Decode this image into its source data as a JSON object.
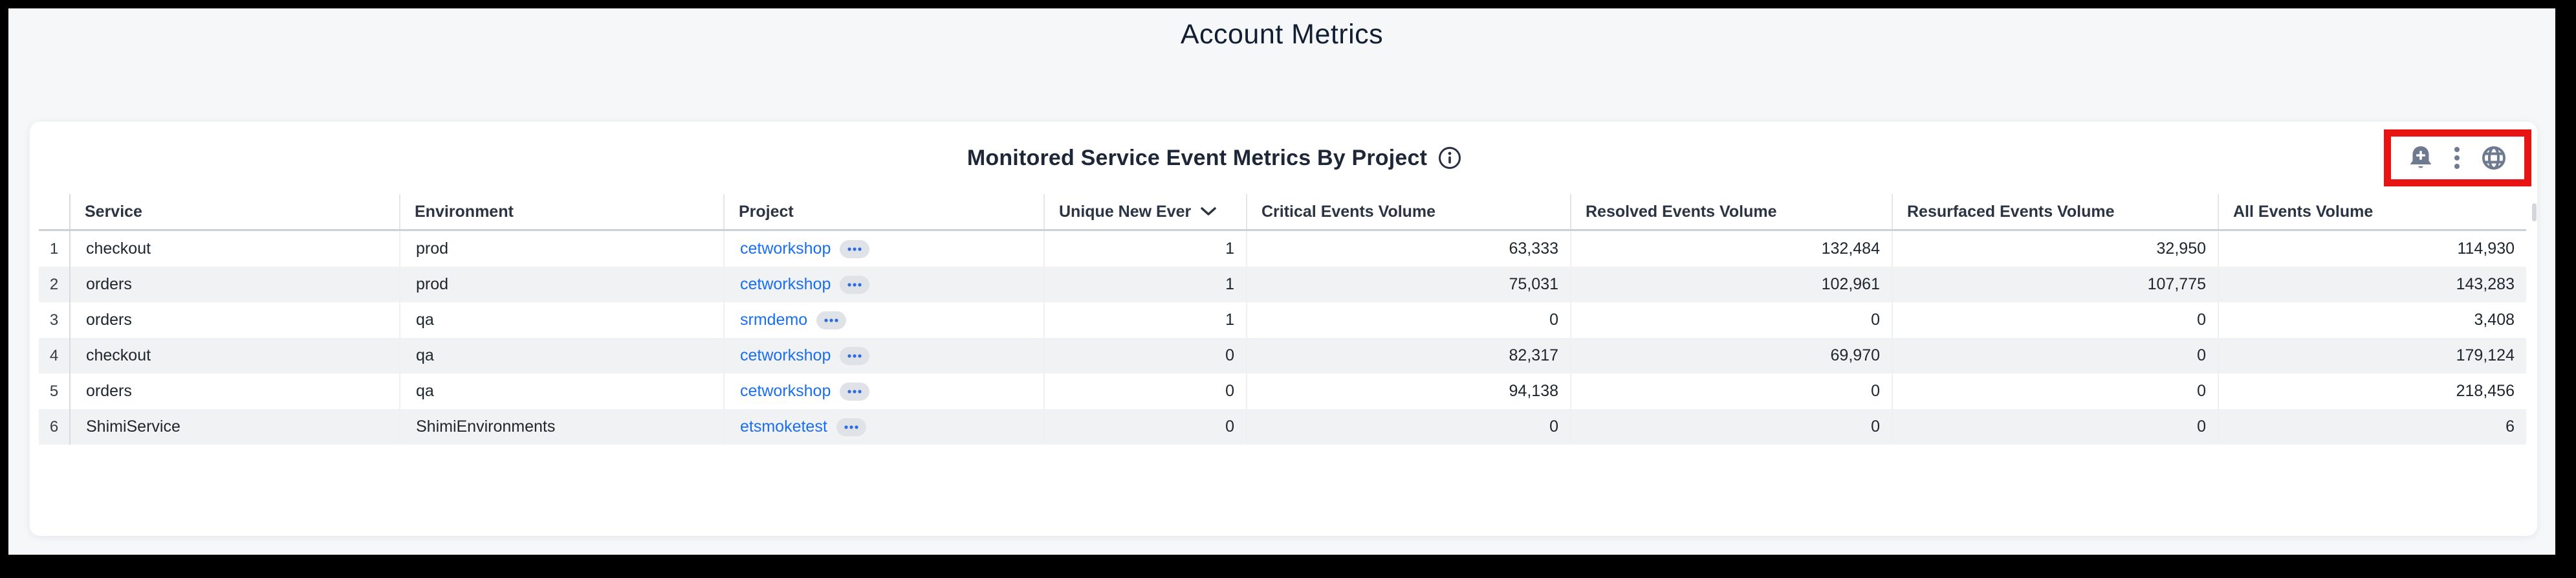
{
  "page": {
    "title": "Account Metrics"
  },
  "widget": {
    "title": "Monitored Service Event Metrics By Project",
    "info_icon": "info-icon",
    "actions": [
      {
        "name": "create-monitor-bell-icon"
      },
      {
        "name": "kebab-menu-icon"
      },
      {
        "name": "globe-icon"
      }
    ],
    "highlight_color": "#e81414"
  },
  "table": {
    "columns": [
      {
        "key": "num",
        "label": "",
        "align": "center"
      },
      {
        "key": "service",
        "label": "Service",
        "align": "left"
      },
      {
        "key": "environment",
        "label": "Environment",
        "align": "left"
      },
      {
        "key": "project",
        "label": "Project",
        "align": "left",
        "type": "link"
      },
      {
        "key": "unique",
        "label": "Unique New Ever",
        "align": "right",
        "sorted": "desc"
      },
      {
        "key": "critical",
        "label": "Critical Events Volume",
        "align": "right"
      },
      {
        "key": "resolved",
        "label": "Resolved Events Volume",
        "align": "right"
      },
      {
        "key": "resurfaced",
        "label": "Resurfaced Events Volume",
        "align": "right"
      },
      {
        "key": "all",
        "label": "All Events Volume",
        "align": "right"
      }
    ],
    "rows": [
      {
        "num": "1",
        "service": "checkout",
        "environment": "prod",
        "project": "cetworkshop",
        "unique": "1",
        "critical": "63,333",
        "resolved": "132,484",
        "resurfaced": "32,950",
        "all": "114,930"
      },
      {
        "num": "2",
        "service": "orders",
        "environment": "prod",
        "project": "cetworkshop",
        "unique": "1",
        "critical": "75,031",
        "resolved": "102,961",
        "resurfaced": "107,775",
        "all": "143,283"
      },
      {
        "num": "3",
        "service": "orders",
        "environment": "qa",
        "project": "srmdemo",
        "unique": "1",
        "critical": "0",
        "resolved": "0",
        "resurfaced": "0",
        "all": "3,408"
      },
      {
        "num": "4",
        "service": "checkout",
        "environment": "qa",
        "project": "cetworkshop",
        "unique": "0",
        "critical": "82,317",
        "resolved": "69,970",
        "resurfaced": "0",
        "all": "179,124"
      },
      {
        "num": "5",
        "service": "orders",
        "environment": "qa",
        "project": "cetworkshop",
        "unique": "0",
        "critical": "94,138",
        "resolved": "0",
        "resurfaced": "0",
        "all": "218,456"
      },
      {
        "num": "6",
        "service": "ShimiService",
        "environment": "ShimiEnvironments",
        "project": "etsmoketest",
        "unique": "0",
        "critical": "0",
        "resolved": "0",
        "resurfaced": "0",
        "all": "6"
      }
    ],
    "project_pill_icon": "ellipsis-pill-icon"
  },
  "colors": {
    "link": "#1a6ef2",
    "highlight_box": "#e81414",
    "icon_gray": "#6e7a8e",
    "stripe": "#f1f2f3",
    "page_background": "#f6f7f9",
    "frame": "#000000",
    "title_text": "#121e31",
    "pill_background": "#dfe2e7",
    "pill_dots": "#2d6be0"
  }
}
